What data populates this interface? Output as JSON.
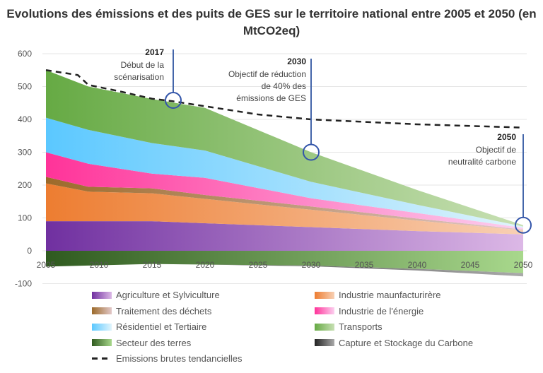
{
  "chart_data": {
    "type": "area",
    "stacked": true,
    "title": "Evolutions des émissions et des puits  de GES sur le territoire national entre 2005 et 2050 (en MtCO2eq)",
    "xlabel": "",
    "ylabel": "",
    "xlim": [
      2005,
      2050
    ],
    "ylim": [
      -100,
      600
    ],
    "x_ticks": [
      "2005",
      "2010",
      "2015",
      "2020",
      "2025",
      "2030",
      "2035",
      "2040",
      "2045",
      "2050"
    ],
    "y_ticks": [
      "600",
      "500",
      "400",
      "300",
      "200",
      "100",
      "0",
      "-100"
    ],
    "grid": true,
    "legend_position": "bottom",
    "x": [
      2005,
      2009,
      2015,
      2020,
      2030,
      2040,
      2050
    ],
    "series": [
      {
        "name": "Agriculture et Sylviculture",
        "color": "#7030a0",
        "light": "#dcb8e6",
        "values": [
          90,
          90,
          90,
          84,
          72,
          60,
          50
        ]
      },
      {
        "name": "Industrie maunfacturirère",
        "color": "#ed7d31",
        "light": "#f8d0b4",
        "values": [
          115,
          90,
          85,
          74,
          53,
          32,
          12
        ]
      },
      {
        "name": "Traitement des déchets",
        "color": "#9c6a2a",
        "light": "#e2c8c8",
        "values": [
          20,
          15,
          15,
          12,
          10,
          6,
          3
        ]
      },
      {
        "name": "Industrie de l'énergie",
        "color": "#ff3399",
        "light": "#fcd0f0",
        "values": [
          75,
          70,
          45,
          52,
          25,
          17,
          5
        ]
      },
      {
        "name": "Résidentiel et Tertiaire",
        "color": "#5bc8ff",
        "light": "#e0f4fc",
        "values": [
          105,
          103,
          93,
          83,
          50,
          25,
          4
        ]
      },
      {
        "name": "Transports",
        "color": "#66aa44",
        "light": "#c8e0b4",
        "values": [
          145,
          132,
          134,
          130,
          90,
          45,
          4
        ]
      },
      {
        "name": "Secteur des terres",
        "color": "#2f5a1f",
        "light": "#a8d88c",
        "values": [
          -48,
          -45,
          -40,
          -42,
          -45,
          -55,
          -68
        ]
      },
      {
        "name": "Capture et Stockage du Carbone",
        "color": "#222222",
        "light": "#aaaaaa",
        "values": [
          0,
          0,
          0,
          0,
          -2,
          -5,
          -10
        ]
      }
    ],
    "line": {
      "name": "Emissions brutes tendancielles",
      "x": [
        2005,
        2008,
        2009,
        2012,
        2015,
        2017,
        2020,
        2025,
        2030,
        2040,
        2050
      ],
      "values": [
        550,
        535,
        505,
        485,
        463,
        455,
        440,
        415,
        400,
        385,
        375
      ]
    },
    "annotations": [
      {
        "year": 2017,
        "value": 458,
        "label": "2017",
        "text": [
          "Début de la",
          "scénarisation"
        ]
      },
      {
        "year": 2030,
        "value": 300,
        "label": "2030",
        "text": [
          "Objectif de réduction",
          "de 40% des",
          "émissions de GES"
        ]
      },
      {
        "year": 2050,
        "value": 78,
        "label": "2050",
        "text": [
          "Objectif de",
          "neutralité carbone"
        ]
      }
    ]
  }
}
